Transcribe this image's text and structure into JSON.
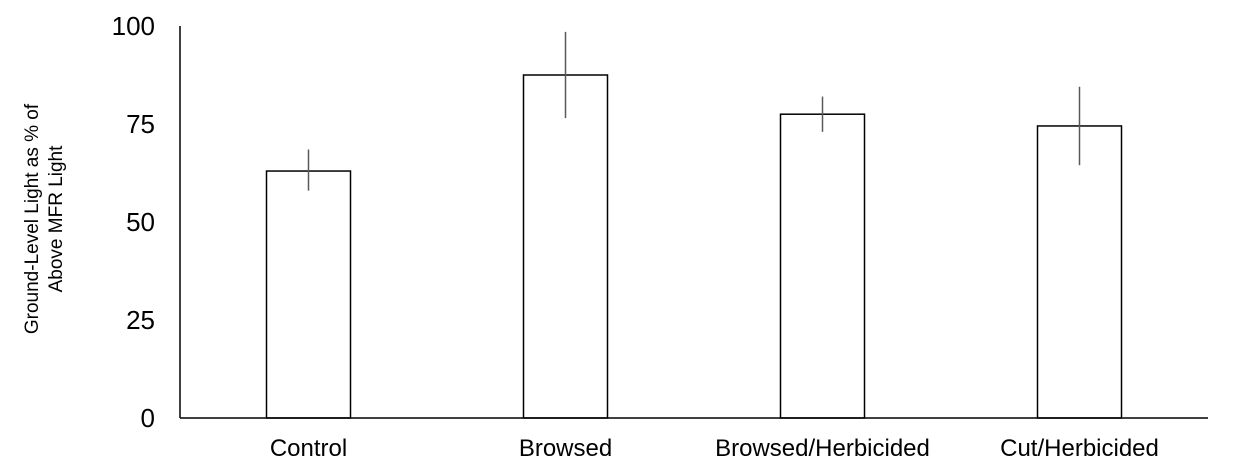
{
  "chart_data": {
    "type": "bar",
    "categories": [
      "Control",
      "Browsed",
      "Browsed/Herbicided",
      "Cut/Herbicided"
    ],
    "values": [
      63,
      87.5,
      77.5,
      74.5
    ],
    "error_low": [
      58,
      76.5,
      73,
      64.5
    ],
    "error_high": [
      68.5,
      98.5,
      82,
      84.5
    ],
    "title": "",
    "xlabel": "",
    "ylabel_lines": [
      "Ground-Level Light as % of",
      "Above MFR Light"
    ],
    "ylim": [
      0,
      100
    ],
    "yticks": [
      "0",
      "25",
      "50",
      "75",
      "100"
    ],
    "grid": false,
    "legend": "none",
    "colors": {
      "bar_fill": "#ffffff",
      "bar_stroke": "#000000",
      "error_bar": "#595959",
      "axis": "#000000"
    }
  }
}
